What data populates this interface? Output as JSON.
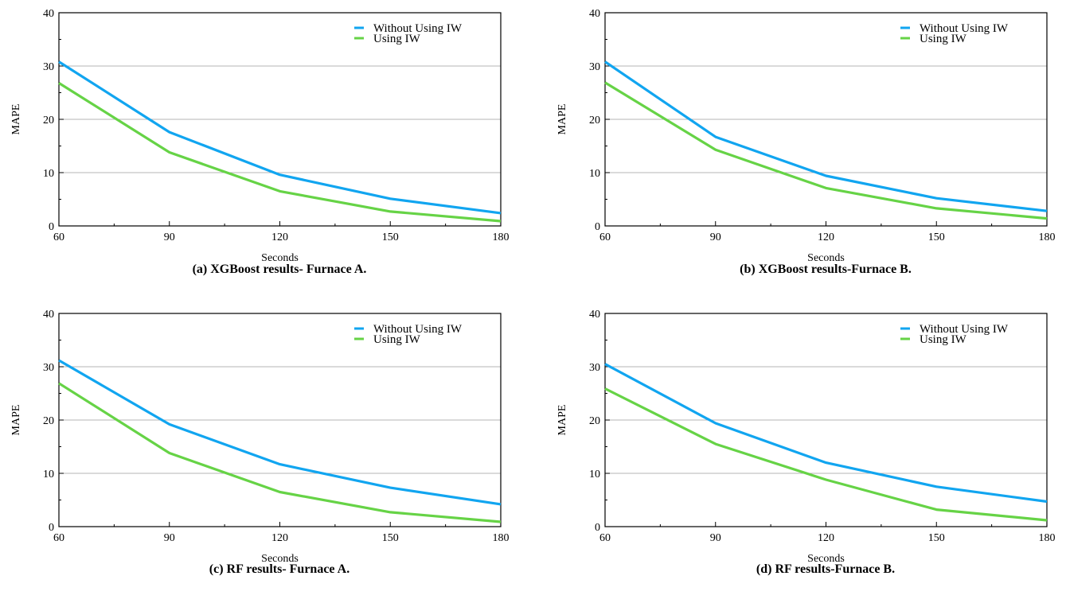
{
  "figure": {
    "colors": {
      "without_iw": "#11A5F0",
      "using_iw": "#66D346",
      "grid": "#B4B4B4",
      "axis": "#000000"
    }
  },
  "chart_data": [
    {
      "type": "line",
      "caption": "(a) XGBoost results- Furnace A.",
      "xlabel": "Seconds",
      "ylabel": "MAPE",
      "x": [
        60,
        90,
        120,
        150,
        180
      ],
      "xlim": [
        60,
        180
      ],
      "ylim": [
        0,
        40
      ],
      "xticks": [
        60,
        90,
        120,
        150,
        180
      ],
      "yticks": [
        0,
        10,
        20,
        30,
        40
      ],
      "grid": "horizontal",
      "legend_position": "top-right",
      "series": [
        {
          "name": "Without Using IW",
          "color": "#11A5F0",
          "values": [
            30.8,
            17.6,
            9.6,
            5.1,
            2.4
          ]
        },
        {
          "name": "Using IW",
          "color": "#66D346",
          "values": [
            26.8,
            13.8,
            6.5,
            2.7,
            0.9
          ]
        }
      ]
    },
    {
      "type": "line",
      "caption": "(b) XGBoost results-Furnace B.",
      "xlabel": "Seconds",
      "ylabel": "MAPE",
      "x": [
        60,
        90,
        120,
        150,
        180
      ],
      "xlim": [
        60,
        180
      ],
      "ylim": [
        0,
        40
      ],
      "xticks": [
        60,
        90,
        120,
        150,
        180
      ],
      "yticks": [
        0,
        10,
        20,
        30,
        40
      ],
      "grid": "horizontal",
      "legend_position": "top-right",
      "series": [
        {
          "name": "Without Using IW",
          "color": "#11A5F0",
          "values": [
            30.8,
            16.7,
            9.4,
            5.2,
            2.8
          ]
        },
        {
          "name": "Using IW",
          "color": "#66D346",
          "values": [
            26.9,
            14.3,
            7.1,
            3.3,
            1.4
          ]
        }
      ]
    },
    {
      "type": "line",
      "caption": "(c) RF results- Furnace A.",
      "xlabel": "Seconds",
      "ylabel": "MAPE",
      "x": [
        60,
        90,
        120,
        150,
        180
      ],
      "xlim": [
        60,
        180
      ],
      "ylim": [
        0,
        40
      ],
      "xticks": [
        60,
        90,
        120,
        150,
        180
      ],
      "yticks": [
        0,
        10,
        20,
        30,
        40
      ],
      "grid": "horizontal",
      "legend_position": "top-right",
      "series": [
        {
          "name": "Without Using IW",
          "color": "#11A5F0",
          "values": [
            31.2,
            19.2,
            11.7,
            7.3,
            4.2
          ]
        },
        {
          "name": "Using IW",
          "color": "#66D346",
          "values": [
            26.9,
            13.8,
            6.5,
            2.7,
            0.9
          ]
        }
      ]
    },
    {
      "type": "line",
      "caption": "(d) RF results-Furnace B.",
      "xlabel": "Seconds",
      "ylabel": "MAPE",
      "x": [
        60,
        90,
        120,
        150,
        180
      ],
      "xlim": [
        60,
        180
      ],
      "ylim": [
        0,
        40
      ],
      "xticks": [
        60,
        90,
        120,
        150,
        180
      ],
      "yticks": [
        0,
        10,
        20,
        30,
        40
      ],
      "grid": "horizontal",
      "legend_position": "top-right",
      "series": [
        {
          "name": "Without Using IW",
          "color": "#11A5F0",
          "values": [
            30.5,
            19.4,
            12.0,
            7.5,
            4.7
          ]
        },
        {
          "name": "Using IW",
          "color": "#66D346",
          "values": [
            25.9,
            15.5,
            8.8,
            3.2,
            1.2
          ]
        }
      ]
    }
  ]
}
